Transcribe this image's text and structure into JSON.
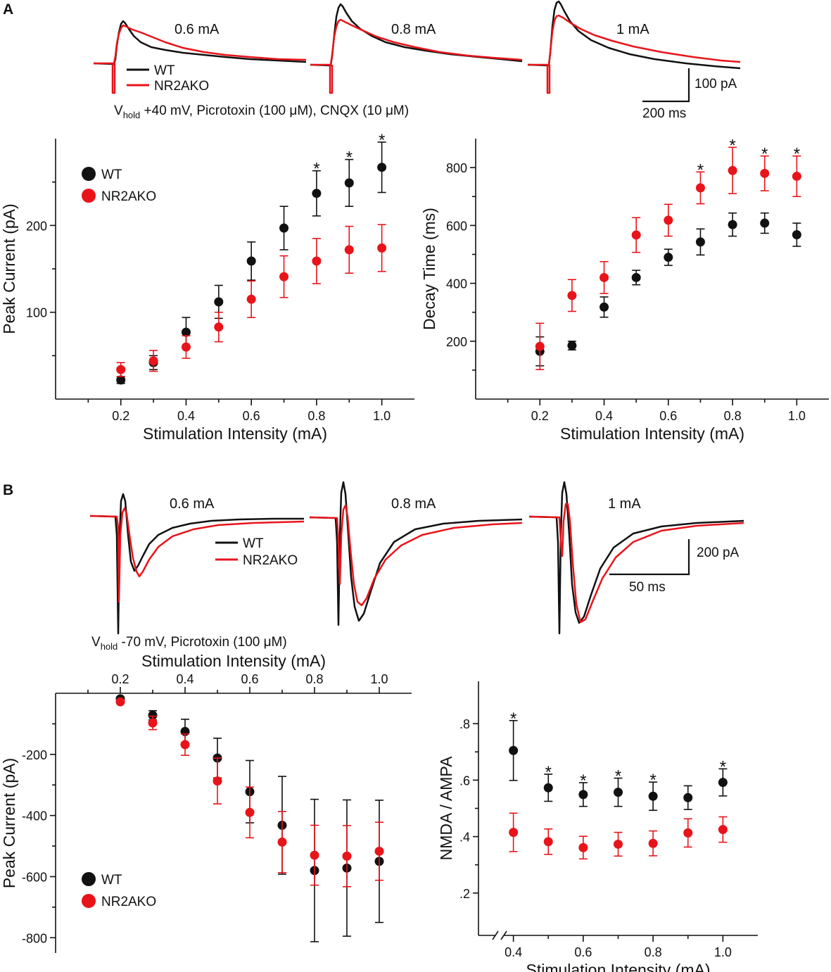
{
  "panels": {
    "a": "A",
    "b": "B"
  },
  "colors": {
    "wt": "#111111",
    "ko": "#e8141a"
  },
  "traces_a": {
    "labels": [
      "0.6 mA",
      "0.8 mA",
      "1 mA"
    ],
    "legend": [
      "WT",
      "NR2AKO"
    ],
    "condition_prefix": "V",
    "condition_sub": "hold",
    "condition_rest": " +40 mV, Picrotoxin (100 μM), CNQX (10 μM)",
    "scale_y": "100 pA",
    "scale_x": "200 ms"
  },
  "traces_b": {
    "labels": [
      "0.6 mA",
      "0.8 mA",
      "1 mA"
    ],
    "legend": [
      "WT",
      "NR2AKO"
    ],
    "condition_prefix": "V",
    "condition_sub": "hold",
    "condition_rest": " -70 mV, Picrotoxin (100 μM)",
    "scale_y": "200 pA",
    "scale_x": "50 ms"
  },
  "chart_data": [
    {
      "id": "a-peak",
      "type": "scatter",
      "title": "",
      "xlabel": "Stimulation Intensity (mA)",
      "ylabel": "Peak Current (pA)",
      "xlim": [
        0.0,
        1.1
      ],
      "ylim": [
        0,
        300
      ],
      "x_ticks": [
        0.2,
        0.4,
        0.6,
        0.8,
        1.0
      ],
      "x_tick_labels": [
        "0.2",
        "0.4",
        "0.6",
        "0.8",
        "1.0"
      ],
      "x_minor_ticks": [
        0.1,
        0.3,
        0.5,
        0.7,
        0.9
      ],
      "y_ticks": [
        100,
        200
      ],
      "y_tick_labels": [
        "100",
        "200"
      ],
      "y_minor_ticks": [
        50,
        150,
        250
      ],
      "legend": [
        "WT",
        "NR2AKO"
      ],
      "legend_position": "top-left",
      "series": [
        {
          "name": "WT",
          "color": "#111111",
          "x": [
            0.2,
            0.3,
            0.4,
            0.5,
            0.6,
            0.7,
            0.8,
            0.9,
            1.0
          ],
          "y": [
            22,
            42,
            77,
            112,
            159,
            197,
            237,
            249,
            267
          ],
          "err": [
            4,
            8,
            17,
            19,
            22,
            25,
            26,
            27,
            29
          ]
        },
        {
          "name": "NR2AKO",
          "color": "#e8141a",
          "x": [
            0.2,
            0.3,
            0.4,
            0.5,
            0.6,
            0.7,
            0.8,
            0.9,
            1.0
          ],
          "y": [
            34,
            44,
            60,
            83,
            115,
            141,
            159,
            172,
            174
          ],
          "err": [
            8,
            12,
            13,
            17,
            21,
            24,
            26,
            27,
            27
          ]
        }
      ],
      "significant": [
        0.8,
        0.9,
        1.0
      ],
      "marker": "*"
    },
    {
      "id": "a-decay",
      "type": "scatter",
      "title": "",
      "xlabel": "Stimulation Intensity (mA)",
      "ylabel": "Decay Time (ms)",
      "xlim": [
        0.0,
        1.1
      ],
      "ylim": [
        0,
        900
      ],
      "x_ticks": [
        0.2,
        0.4,
        0.6,
        0.8,
        1.0
      ],
      "x_tick_labels": [
        "0.2",
        "0.4",
        "0.6",
        "0.8",
        "1.0"
      ],
      "x_minor_ticks": [
        0.1,
        0.3,
        0.5,
        0.7,
        0.9
      ],
      "y_ticks": [
        200,
        400,
        600,
        800
      ],
      "y_tick_labels": [
        "200",
        "400",
        "600",
        "800"
      ],
      "y_minor_ticks": [
        100,
        300,
        500,
        700
      ],
      "series": [
        {
          "name": "WT",
          "color": "#111111",
          "x": [
            0.2,
            0.3,
            0.4,
            0.5,
            0.6,
            0.7,
            0.8,
            0.9,
            1.0
          ],
          "y": [
            165,
            185,
            318,
            420,
            490,
            543,
            603,
            608,
            568
          ],
          "err": [
            50,
            15,
            35,
            25,
            28,
            45,
            40,
            35,
            40
          ]
        },
        {
          "name": "NR2AKO",
          "color": "#e8141a",
          "x": [
            0.2,
            0.3,
            0.4,
            0.5,
            0.6,
            0.7,
            0.8,
            0.9,
            1.0
          ],
          "y": [
            182,
            358,
            420,
            567,
            618,
            730,
            790,
            780,
            770
          ],
          "err": [
            80,
            55,
            55,
            60,
            55,
            55,
            80,
            60,
            70
          ]
        }
      ],
      "significant": [
        0.7,
        0.8,
        0.9,
        1.0
      ],
      "marker": "*"
    },
    {
      "id": "b-peak",
      "type": "scatter",
      "title": "",
      "xlabel": "Stimulation Intensity (mA)",
      "xlabel_position": "top",
      "ylabel": "Peak Current (pA)",
      "xlim": [
        0.0,
        1.1
      ],
      "ylim": [
        -850,
        0
      ],
      "x_ticks": [
        0.2,
        0.4,
        0.6,
        0.8,
        1.0
      ],
      "x_tick_labels": [
        "0.2",
        "0.4",
        "0.6",
        "0.8",
        "1.0"
      ],
      "x_minor_ticks": [
        0.1,
        0.3,
        0.5,
        0.7,
        0.9
      ],
      "y_ticks": [
        -200,
        -400,
        -600,
        -800
      ],
      "y_tick_labels": [
        "-200",
        "-400",
        "-600",
        "-800"
      ],
      "y_minor_ticks": [
        -100,
        -300,
        -500,
        -700
      ],
      "legend": [
        "WT",
        "NR2AKO"
      ],
      "legend_position": "bottom-left",
      "series": [
        {
          "name": "WT",
          "color": "#111111",
          "x": [
            0.2,
            0.3,
            0.4,
            0.5,
            0.6,
            0.7,
            0.8,
            0.9,
            1.0
          ],
          "y": [
            -18,
            -72,
            -125,
            -212,
            -322,
            -432,
            -580,
            -572,
            -550
          ],
          "err": [
            5,
            15,
            40,
            65,
            102,
            160,
            233,
            223,
            200
          ]
        },
        {
          "name": "NR2AKO",
          "color": "#e8141a",
          "x": [
            0.2,
            0.3,
            0.4,
            0.5,
            0.6,
            0.7,
            0.8,
            0.9,
            1.0
          ],
          "y": [
            -28,
            -97,
            -168,
            -287,
            -390,
            -487,
            -530,
            -533,
            -517
          ],
          "err": [
            5,
            22,
            35,
            75,
            83,
            100,
            98,
            100,
            95
          ]
        }
      ]
    },
    {
      "id": "b-ratio",
      "type": "scatter",
      "title": "",
      "xlabel": "Stimulation Intensity (mA)",
      "ylabel": "NMDA / AMPA",
      "xlim": [
        0.3,
        1.1
      ],
      "ylim": [
        0.05,
        0.95
      ],
      "axis_break": true,
      "x_ticks": [
        0.4,
        0.6,
        0.8,
        1.0
      ],
      "x_tick_labels": [
        "0.4",
        "0.6",
        "0.8",
        "1.0"
      ],
      "x_minor_ticks": [
        0.5,
        0.7,
        0.9
      ],
      "y_ticks": [
        0.2,
        0.4,
        0.6,
        0.8
      ],
      "y_tick_labels": [
        ".2",
        ".4",
        ".6",
        ".8"
      ],
      "y_minor_ticks": [
        0.3,
        0.5,
        0.7
      ],
      "series": [
        {
          "name": "WT",
          "color": "#111111",
          "x": [
            0.4,
            0.5,
            0.6,
            0.7,
            0.8,
            0.9,
            1.0
          ],
          "y": [
            0.705,
            0.573,
            0.549,
            0.557,
            0.543,
            0.538,
            0.592
          ],
          "err": [
            0.106,
            0.048,
            0.042,
            0.05,
            0.05,
            0.042,
            0.048
          ]
        },
        {
          "name": "NR2AKO",
          "color": "#e8141a",
          "x": [
            0.4,
            0.5,
            0.6,
            0.7,
            0.8,
            0.9,
            1.0
          ],
          "y": [
            0.415,
            0.382,
            0.361,
            0.373,
            0.376,
            0.413,
            0.425
          ],
          "err": [
            0.068,
            0.045,
            0.04,
            0.042,
            0.044,
            0.05,
            0.045
          ]
        }
      ],
      "significant": [
        0.4,
        0.5,
        0.6,
        0.7,
        0.8,
        1.0
      ],
      "marker": "*"
    }
  ]
}
